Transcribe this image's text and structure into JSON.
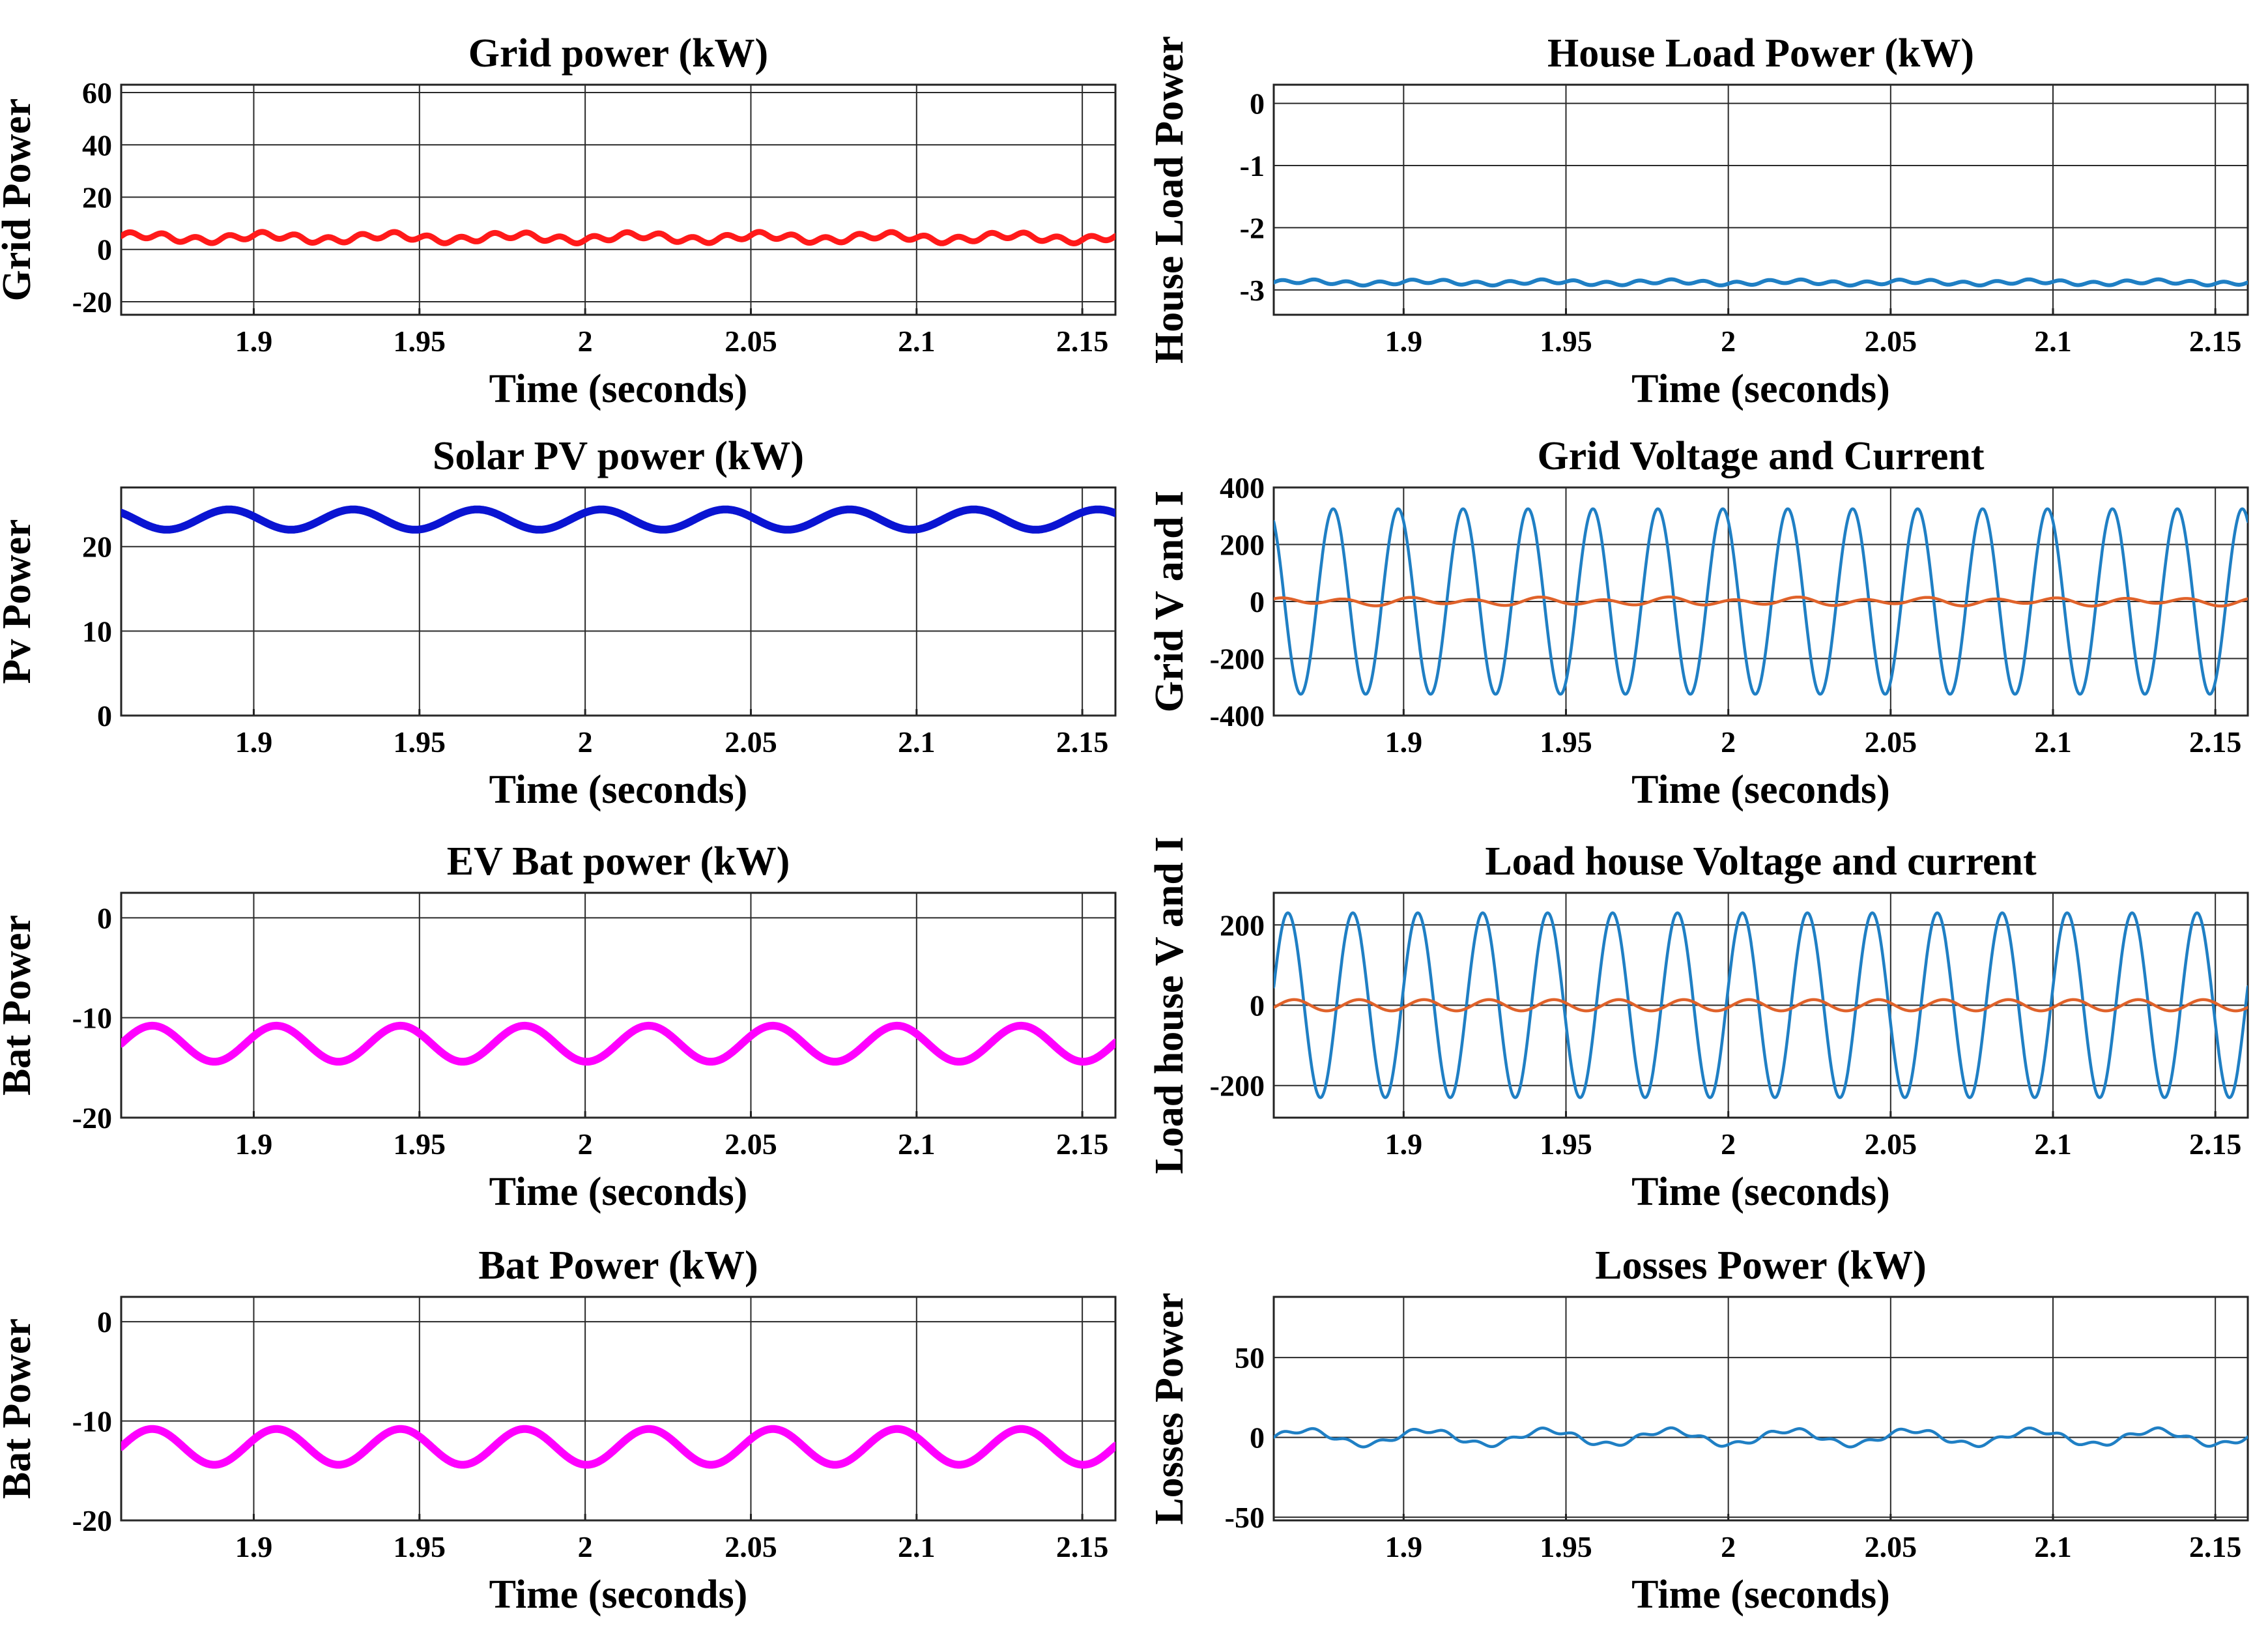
{
  "figure": {
    "domain": "Chart",
    "description_hint": "8 time-domain subplots"
  },
  "colors": {
    "red": "#ff1a1a",
    "blue": "#0a14d2",
    "magenta": "#ff00ff",
    "matlab_blue": "#1f7fc4",
    "matlab_orange": "#e0622a"
  },
  "chart_data": [
    {
      "type": "line",
      "title": "Grid power (kW)",
      "xlabel": "Time (seconds)",
      "ylabel": "Grid Power",
      "xlim": [
        1.86,
        2.16
      ],
      "ylim": [
        -25,
        63
      ],
      "xticks": [
        1.9,
        1.95,
        2,
        2.05,
        2.1,
        2.15
      ],
      "xtick_labels": [
        "1.9",
        "1.95",
        "2",
        "2.05",
        "2.1",
        "2.15"
      ],
      "yticks": [
        -20,
        0,
        20,
        40,
        60
      ],
      "ytick_labels": [
        "-20",
        "0",
        "20",
        "40",
        "60"
      ],
      "grid": true,
      "series": [
        {
          "name": "Grid power",
          "color": "#ff1a1a",
          "width": 9,
          "signal": {
            "offset": 4.5,
            "components": [
              {
                "amp": 1.2,
                "freq": 100,
                "phase": 0
              },
              {
                "amp": 1.0,
                "freq": 26.7,
                "phase": 0.6
              }
            ]
          }
        }
      ]
    },
    {
      "type": "line",
      "title": "House Load Power (kW)",
      "xlabel": "Time (seconds)",
      "ylabel": "House Load Power",
      "xlim": [
        1.86,
        2.16
      ],
      "ylim": [
        -3.4,
        0.3
      ],
      "xticks": [
        1.9,
        1.95,
        2,
        2.05,
        2.1,
        2.15
      ],
      "xtick_labels": [
        "1.9",
        "1.95",
        "2",
        "2.05",
        "2.1",
        "2.15"
      ],
      "yticks": [
        -3,
        -2,
        -1,
        0
      ],
      "ytick_labels": [
        "-3",
        "-2",
        "-1",
        "0"
      ],
      "grid": true,
      "series": [
        {
          "name": "House load power",
          "color": "#1f7fc4",
          "width": 6,
          "signal": {
            "offset": -2.88,
            "components": [
              {
                "amp": 0.03,
                "freq": 100,
                "phase": 0
              },
              {
                "amp": 0.02,
                "freq": 26.7,
                "phase": 0
              }
            ]
          }
        }
      ]
    },
    {
      "type": "line",
      "title": "Solar PV power (kW)",
      "xlabel": "Time (seconds)",
      "ylabel": "Pv Power",
      "xlim": [
        1.86,
        2.16
      ],
      "ylim": [
        0,
        27
      ],
      "xticks": [
        1.9,
        1.95,
        2,
        2.05,
        2.1,
        2.15
      ],
      "xtick_labels": [
        "1.9",
        "1.95",
        "2",
        "2.05",
        "2.1",
        "2.15"
      ],
      "yticks": [
        0,
        10,
        20
      ],
      "ytick_labels": [
        "0",
        "10",
        "20"
      ],
      "grid": true,
      "series": [
        {
          "name": "Solar PV power",
          "color": "#0a14d2",
          "width": 12,
          "signal": {
            "offset": 23.2,
            "components": [
              {
                "amp": 1.2,
                "freq": 26.7,
                "phase": 2.4
              }
            ]
          }
        }
      ]
    },
    {
      "type": "line",
      "title": "Grid Voltage and Current",
      "xlabel": "Time (seconds)",
      "ylabel": "Grid V and I",
      "xlim": [
        1.86,
        2.16
      ],
      "ylim": [
        -400,
        400
      ],
      "xticks": [
        1.9,
        1.95,
        2,
        2.05,
        2.1,
        2.15
      ],
      "xtick_labels": [
        "1.9",
        "1.95",
        "2",
        "2.05",
        "2.1",
        "2.15"
      ],
      "yticks": [
        -400,
        -200,
        0,
        200,
        400
      ],
      "ytick_labels": [
        "-400",
        "-200",
        "0",
        "200",
        "400"
      ],
      "grid": true,
      "series": [
        {
          "name": "Grid voltage",
          "color": "#1f7fc4",
          "width": 4.5,
          "signal": {
            "offset": 0,
            "components": [
              {
                "amp": 325,
                "freq": 50,
                "phase": 2.1
              }
            ]
          }
        },
        {
          "name": "Grid current",
          "color": "#e0622a",
          "width": 4.5,
          "signal": {
            "offset": 0,
            "components": [
              {
                "amp": 11,
                "freq": 50,
                "phase": 1.0
              },
              {
                "amp": 5,
                "freq": 26.7,
                "phase": 0
              }
            ]
          }
        }
      ]
    },
    {
      "type": "line",
      "title": "EV Bat power (kW)",
      "xlabel": "Time (seconds)",
      "ylabel": "Bat Power",
      "xlim": [
        1.86,
        2.16
      ],
      "ylim": [
        -20,
        2.5
      ],
      "xticks": [
        1.9,
        1.95,
        2,
        2.05,
        2.1,
        2.15
      ],
      "xtick_labels": [
        "1.9",
        "1.95",
        "2",
        "2.05",
        "2.1",
        "2.15"
      ],
      "yticks": [
        -20,
        -10,
        0
      ],
      "ytick_labels": [
        "-20",
        "-10",
        "0"
      ],
      "grid": true,
      "series": [
        {
          "name": "EV battery power",
          "color": "#ff00ff",
          "width": 12,
          "signal": {
            "offset": -12.6,
            "components": [
              {
                "amp": 1.8,
                "freq": 26.7,
                "phase": 0
              }
            ]
          }
        }
      ]
    },
    {
      "type": "line",
      "title": "Load house Voltage and current",
      "xlabel": "Time (seconds)",
      "ylabel": "Load house V and I",
      "xlim": [
        1.86,
        2.16
      ],
      "ylim": [
        -280,
        280
      ],
      "xticks": [
        1.9,
        1.95,
        2,
        2.05,
        2.1,
        2.15
      ],
      "xtick_labels": [
        "1.9",
        "1.95",
        "2",
        "2.05",
        "2.1",
        "2.15"
      ],
      "yticks": [
        -200,
        0,
        200
      ],
      "ytick_labels": [
        "-200",
        "0",
        "200"
      ],
      "grid": true,
      "series": [
        {
          "name": "Load house voltage",
          "color": "#1f7fc4",
          "width": 4.5,
          "signal": {
            "offset": 0,
            "components": [
              {
                "amp": 230,
                "freq": 50,
                "phase": 0.2
              }
            ]
          }
        },
        {
          "name": "Load house current",
          "color": "#e0622a",
          "width": 4.5,
          "signal": {
            "offset": 0,
            "components": [
              {
                "amp": 14,
                "freq": 50,
                "phase": -0.4
              }
            ]
          }
        }
      ]
    },
    {
      "type": "line",
      "title": "Bat Power (kW)",
      "xlabel": "Time (seconds)",
      "ylabel": "Bat Power",
      "xlim": [
        1.86,
        2.16
      ],
      "ylim": [
        -20,
        2.5
      ],
      "xticks": [
        1.9,
        1.95,
        2,
        2.05,
        2.1,
        2.15
      ],
      "xtick_labels": [
        "1.9",
        "1.95",
        "2",
        "2.05",
        "2.1",
        "2.15"
      ],
      "yticks": [
        -20,
        -10,
        0
      ],
      "ytick_labels": [
        "-20",
        "-10",
        "0"
      ],
      "grid": true,
      "series": [
        {
          "name": "Battery power",
          "color": "#ff00ff",
          "width": 12,
          "signal": {
            "offset": -12.6,
            "components": [
              {
                "amp": 1.8,
                "freq": 26.7,
                "phase": 0
              }
            ]
          }
        }
      ]
    },
    {
      "type": "line",
      "title": "Losses Power (kW)",
      "xlabel": "Time (seconds)",
      "ylabel": "Losses Power",
      "xlim": [
        1.86,
        2.16
      ],
      "ylim": [
        -52,
        88
      ],
      "xticks": [
        1.9,
        1.95,
        2,
        2.05,
        2.1,
        2.15
      ],
      "xtick_labels": [
        "1.9",
        "1.95",
        "2",
        "2.05",
        "2.1",
        "2.15"
      ],
      "yticks": [
        -50,
        0,
        50
      ],
      "ytick_labels": [
        "-50",
        "0",
        "50"
      ],
      "grid": true,
      "series": [
        {
          "name": "Losses power",
          "color": "#1f7fc4",
          "width": 4.5,
          "signal": {
            "offset": 0,
            "components": [
              {
                "amp": 4.5,
                "freq": 26.7,
                "phase": 0
              },
              {
                "amp": 1.5,
                "freq": 100,
                "phase": 0
              }
            ]
          }
        }
      ]
    }
  ]
}
